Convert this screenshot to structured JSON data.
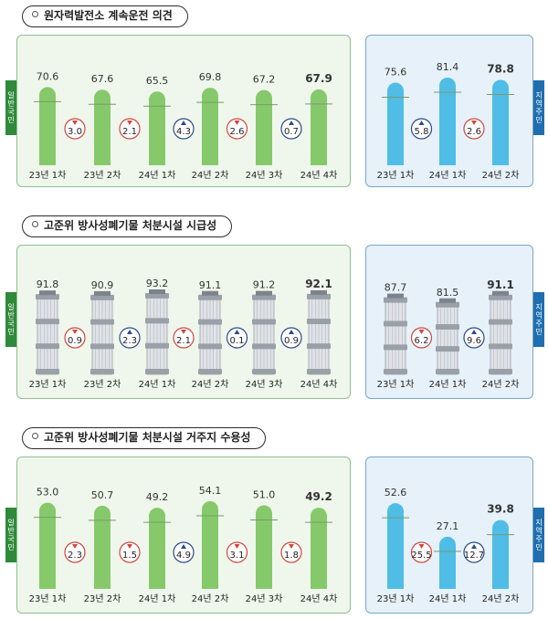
{
  "colors": {
    "general_bar": "#86c96a",
    "local_bar": "#4fbde6",
    "down_marker": "#d0463f",
    "up_marker": "#2b4a8c",
    "grid_line": "#7a9a6e"
  },
  "chart_data": [
    {
      "type": "bar",
      "title": "원자력발전소 계속운전 의견",
      "groups": [
        {
          "label": "일반국민",
          "categories": [
            "23년 1차",
            "23년 2차",
            "24년 1차",
            "24년 2차",
            "24년 3차",
            "24년 4차"
          ],
          "values": [
            70.6,
            67.6,
            65.5,
            69.8,
            67.2,
            67.9
          ],
          "changes": [
            {
              "value": "3.0",
              "direction": "down"
            },
            {
              "value": "2.1",
              "direction": "down"
            },
            {
              "value": "4.3",
              "direction": "up"
            },
            {
              "value": "2.6",
              "direction": "down"
            },
            {
              "value": "0.7",
              "direction": "up"
            }
          ]
        },
        {
          "label": "지역주민",
          "categories": [
            "23년 1차",
            "24년 1차",
            "24년 2차"
          ],
          "values": [
            75.6,
            81.4,
            78.8
          ],
          "changes": [
            {
              "value": "5.8",
              "direction": "up"
            },
            {
              "value": "2.6",
              "direction": "down"
            }
          ]
        }
      ]
    },
    {
      "type": "bar",
      "title": "고준위 방사성폐기물 처분시설 시급성",
      "groups": [
        {
          "label": "일반국민",
          "categories": [
            "23년 1차",
            "23년 2차",
            "24년 1차",
            "24년 2차",
            "24년 3차",
            "24년 4차"
          ],
          "values": [
            91.8,
            90.9,
            93.2,
            91.1,
            91.2,
            92.1
          ],
          "changes": [
            {
              "value": "0.9",
              "direction": "down"
            },
            {
              "value": "2.3",
              "direction": "up"
            },
            {
              "value": "2.1",
              "direction": "down"
            },
            {
              "value": "0.1",
              "direction": "up"
            },
            {
              "value": "0.9",
              "direction": "up"
            }
          ]
        },
        {
          "label": "지역주민",
          "categories": [
            "23년 1차",
            "24년 1차",
            "24년 2차"
          ],
          "values": [
            87.7,
            81.5,
            91.1
          ],
          "changes": [
            {
              "value": "6.2",
              "direction": "down"
            },
            {
              "value": "9.6",
              "direction": "up"
            }
          ]
        }
      ]
    },
    {
      "type": "bar",
      "title": "고준위 방사성폐기물 처분시설 거주지 수용성",
      "groups": [
        {
          "label": "일반국민",
          "categories": [
            "23년 1차",
            "23년 2차",
            "24년 1차",
            "24년 2차",
            "24년 3차",
            "24년 4차"
          ],
          "values": [
            53.0,
            50.7,
            49.2,
            54.1,
            51.0,
            49.2
          ],
          "changes": [
            {
              "value": "2.3",
              "direction": "down"
            },
            {
              "value": "1.5",
              "direction": "down"
            },
            {
              "value": "4.9",
              "direction": "up"
            },
            {
              "value": "3.1",
              "direction": "down"
            },
            {
              "value": "1.8",
              "direction": "down"
            }
          ]
        },
        {
          "label": "지역주민",
          "categories": [
            "23년 1차",
            "24년 1차",
            "24년 2차"
          ],
          "values": [
            52.6,
            27.1,
            39.8
          ],
          "changes": [
            {
              "value": "25.5",
              "direction": "down"
            },
            {
              "value": "12.7",
              "direction": "up"
            }
          ]
        }
      ]
    }
  ]
}
